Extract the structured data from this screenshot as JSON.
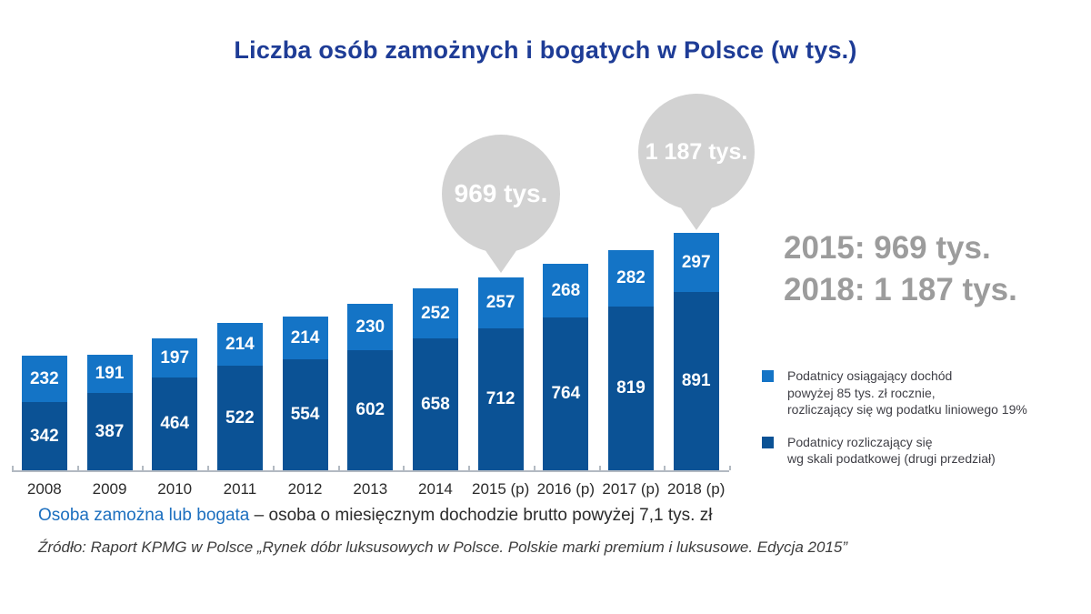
{
  "title": "Liczba osób zamożnych i bogatych w Polsce (w tys.)",
  "chart_data": {
    "type": "bar",
    "stacked": true,
    "title": "Liczba osób zamożnych i bogatych w Polsce (w tys.)",
    "xlabel": "",
    "ylabel": "",
    "ylim": [
      0,
      1250
    ],
    "grid": false,
    "legend_position": "right",
    "categories": [
      "2008",
      "2009",
      "2010",
      "2011",
      "2012",
      "2013",
      "2014",
      "2015 (p)",
      "2016 (p)",
      "2017 (p)",
      "2018 (p)"
    ],
    "series": [
      {
        "name": "Podatnicy rozliczający się wg skali podatkowej (drugi przedział)",
        "color": "#0b5295",
        "values": [
          342,
          387,
          464,
          522,
          554,
          602,
          658,
          712,
          764,
          819,
          891
        ]
      },
      {
        "name": "Podatnicy osiągający dochód powyżej 85 tys. zł rocznie, rozliczający się wg podatku liniowego 19%",
        "color": "#1474c6",
        "values": [
          232,
          191,
          197,
          214,
          214,
          230,
          252,
          257,
          268,
          282,
          297
        ]
      }
    ],
    "callouts": [
      {
        "category": "2015 (p)",
        "total": 969,
        "label": "969 tys."
      },
      {
        "category": "2018 (p)",
        "total": 1187,
        "label": "1 187 tys."
      }
    ]
  },
  "summary": {
    "line1": "2015: 969 tys.",
    "line2": "2018: 1 187 tys."
  },
  "legend": {
    "items": [
      {
        "series": 1,
        "lines": [
          "Podatnicy osiągający dochód",
          "powyżej 85 tys. zł rocznie,",
          "rozliczający się wg podatku liniowego 19%"
        ]
      },
      {
        "series": 0,
        "lines": [
          "Podatnicy rozliczający się",
          "wg skali podatkowej (drugi przedział)"
        ]
      }
    ]
  },
  "footnote": {
    "term": "Osoba zamożna lub bogata",
    "rest": " – osoba o miesięcznym dochodzie brutto powyżej 7,1 tys. zł"
  },
  "source": "Źródło: Raport KPMG w Polsce „Rynek dóbr luksusowych w Polsce. Polskie marki premium i luksusowe. Edycja 2015”"
}
